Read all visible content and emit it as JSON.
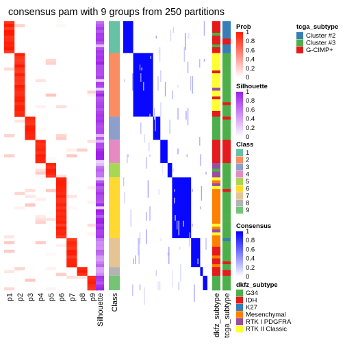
{
  "chart_data": {
    "type": "heatmap",
    "title": "consensus pam with 9 groups from 250 partitions",
    "prob_columns": [
      "p1",
      "p2",
      "p3",
      "p4",
      "p5",
      "p6",
      "p7",
      "p8",
      "p9"
    ],
    "annotation_columns": [
      "Silhouette",
      "Class"
    ],
    "consensus_annotation_columns": [
      "dkfz_subtype",
      "tcga_subtype"
    ],
    "class_colors": [
      "#66C2A5",
      "#FC8D62",
      "#8DA0CB",
      "#E78AC3",
      "#A6D854",
      "#FFD92F",
      "#E5C494",
      "#B3B3B3",
      "#74C476"
    ],
    "groups": [
      {
        "class": 1,
        "size": 11,
        "mean_silhouette": 0.8
      },
      {
        "class": 2,
        "size": 22,
        "mean_silhouette": 0.85
      },
      {
        "class": 3,
        "size": 8,
        "mean_silhouette": 0.86
      },
      {
        "class": 4,
        "size": 8,
        "mean_silhouette": 0.9
      },
      {
        "class": 5,
        "size": 5,
        "mean_silhouette": 0.7
      },
      {
        "class": 6,
        "size": 21,
        "mean_silhouette": 0.88
      },
      {
        "class": 7,
        "size": 10,
        "mean_silhouette": 0.55
      },
      {
        "class": 8,
        "size": 3,
        "mean_silhouette": 0.5
      },
      {
        "class": 9,
        "size": 5,
        "mean_silhouette": 0.9
      }
    ],
    "legends": {
      "prob": {
        "title": "Prob",
        "ticks": [
          "1",
          "0.8",
          "0.6",
          "0.4",
          "0.2",
          "0"
        ]
      },
      "silhouette": {
        "title": "Silhouette",
        "ticks": [
          "1",
          "0.8",
          "0.6",
          "0.4",
          "0.2",
          "0"
        ]
      },
      "class": {
        "title": "Class",
        "labels": [
          "1",
          "2",
          "3",
          "4",
          "5",
          "6",
          "7",
          "8",
          "9"
        ]
      },
      "consensus": {
        "title": "Consensus",
        "ticks": [
          "1",
          "0.8",
          "0.6",
          "0.4",
          "0.2",
          "0"
        ]
      },
      "dkfz_subtype": {
        "title": "dkfz_subtype",
        "labels": [
          "G34",
          "IDH",
          "K27",
          "Mesenchymal",
          "RTK I PDGFRA",
          "RTK II Classic"
        ],
        "colors": [
          "#4DAF4A",
          "#E41A1C",
          "#377EB8",
          "#FF7F00",
          "#984EA3",
          "#FFFF33"
        ]
      },
      "tcga_subtype": {
        "title": "tcga_subtype",
        "labels": [
          "Cluster #2",
          "Cluster #3",
          "G-CIMP+"
        ],
        "colors": [
          "#377EB8",
          "#4DAF4A",
          "#E41A1C"
        ]
      }
    }
  }
}
